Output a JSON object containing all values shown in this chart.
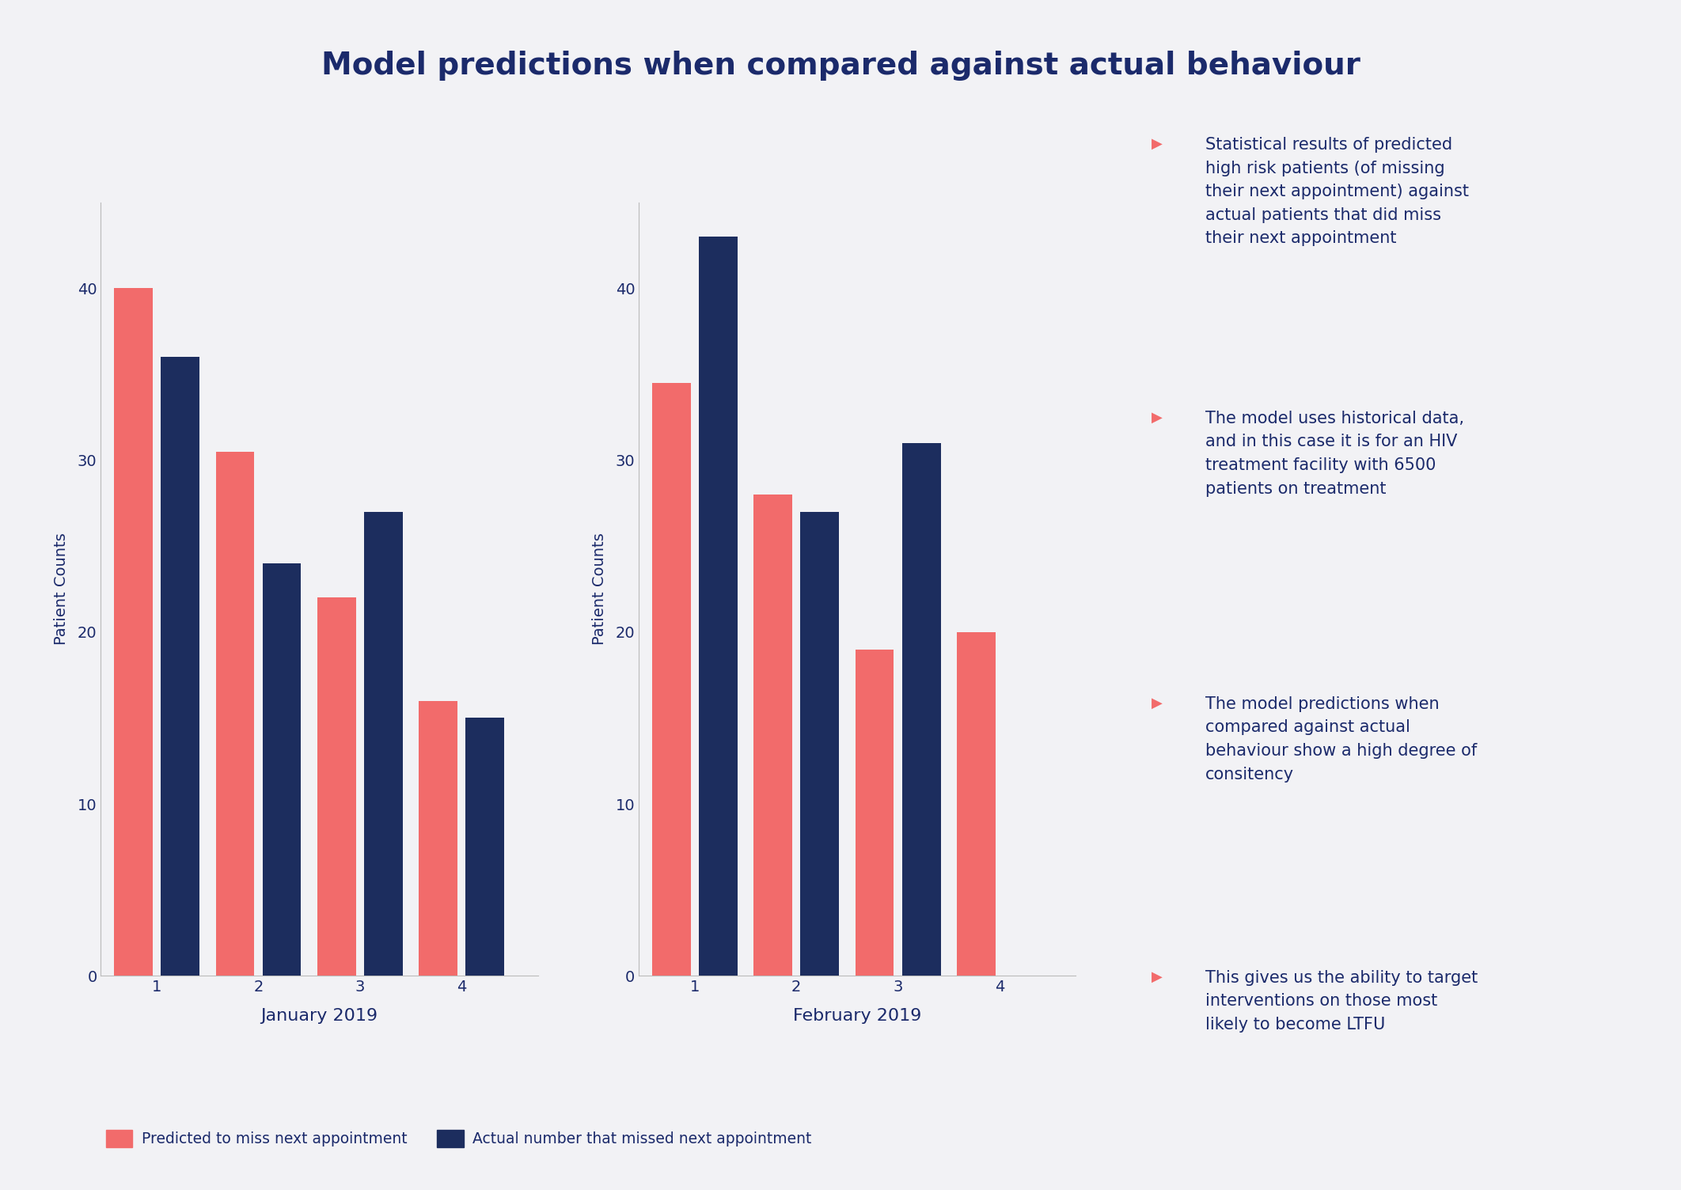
{
  "title": "Model predictions when compared against actual behaviour",
  "background_color": "#F2F2F5",
  "title_color": "#1B2A6B",
  "title_fontsize": 28,
  "jan_categories": [
    1,
    2,
    3,
    4
  ],
  "jan_predicted": [
    40,
    30.5,
    22,
    16
  ],
  "jan_actual": [
    36,
    24,
    27,
    15
  ],
  "jan_xlabel": "January 2019",
  "feb_categories": [
    1,
    2,
    3,
    4
  ],
  "feb_predicted": [
    34.5,
    28,
    19,
    20
  ],
  "feb_actual": [
    43,
    27,
    31,
    0
  ],
  "feb_xlabel": "February 2019",
  "ylabel": "Patient Counts",
  "ylim": [
    0,
    45
  ],
  "yticks": [
    0,
    10,
    20,
    30,
    40
  ],
  "bar_color_predicted": "#F26B6B",
  "bar_color_actual": "#1C2D5E",
  "bar_width": 0.38,
  "legend_predicted": "Predicted to miss next appointment",
  "legend_actual": "Actual number that missed next appointment",
  "bullet_color": "#F26B6B",
  "annotations": [
    "Statistical results of predicted\nhigh risk patients (of missing\ntheir next appointment) against\nactual patients that did miss\ntheir next appointment",
    "The model uses historical data,\nand in this case it is for an HIV\ntreatment facility with 6500\npatients on treatment",
    "The model predictions when\ncompared against actual\nbehaviour show a high degree of\nconsitency",
    "This gives us the ability to target\ninterventions on those most\nlikely to become LTFU"
  ],
  "annotation_color": "#1B2A6B",
  "annotation_fontsize": 15
}
